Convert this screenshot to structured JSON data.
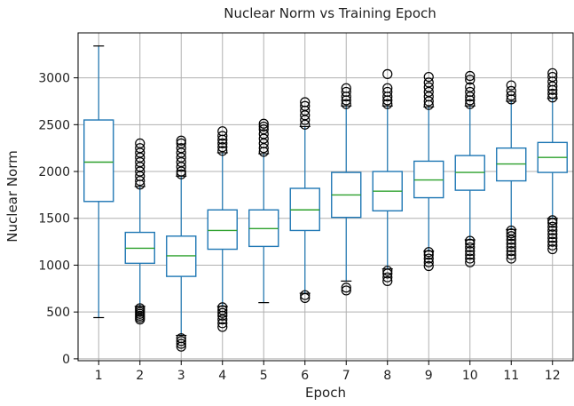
{
  "chart_data": {
    "type": "box",
    "title": "Nuclear Norm vs Training Epoch",
    "xlabel": "Epoch",
    "ylabel": "Nuclear Norm",
    "categories": [
      "1",
      "2",
      "3",
      "4",
      "5",
      "6",
      "7",
      "8",
      "9",
      "10",
      "11",
      "12"
    ],
    "ylim": [
      -20,
      3480
    ],
    "yticks": [
      0,
      500,
      1000,
      1500,
      2000,
      2500,
      3000
    ],
    "grid": true,
    "colors": {
      "box": "#1f77b4",
      "median": "#2ca02c",
      "grid": "#b0b0b0",
      "flier": "#000000"
    },
    "boxes": [
      {
        "epoch": "1",
        "whislo": 440,
        "q1": 1680,
        "med": 2100,
        "q3": 2550,
        "whishi": 3340,
        "fliers": []
      },
      {
        "epoch": "2",
        "whislo": 560,
        "q1": 1020,
        "med": 1180,
        "q3": 1350,
        "whishi": 1840,
        "fliers": [
          420,
          440,
          460,
          480,
          500,
          520,
          540,
          1860,
          1900,
          1950,
          2000,
          2050,
          2100,
          2150,
          2200,
          2250,
          2300
        ]
      },
      {
        "epoch": "3",
        "whislo": 250,
        "q1": 880,
        "med": 1100,
        "q3": 1310,
        "whishi": 1950,
        "fliers": [
          130,
          160,
          190,
          220,
          1970,
          2000,
          2050,
          2100,
          2150,
          2200,
          2250,
          2300,
          2330
        ]
      },
      {
        "epoch": "4",
        "whislo": 560,
        "q1": 1170,
        "med": 1370,
        "q3": 1590,
        "whishi": 2200,
        "fliers": [
          340,
          380,
          420,
          460,
          490,
          520,
          550,
          2220,
          2260,
          2300,
          2340,
          2380,
          2430
        ]
      },
      {
        "epoch": "5",
        "whislo": 600,
        "q1": 1200,
        "med": 1390,
        "q3": 1590,
        "whishi": 2190,
        "fliers": [
          2210,
          2250,
          2300,
          2350,
          2400,
          2450,
          2480,
          2510
        ]
      },
      {
        "epoch": "6",
        "whislo": 700,
        "q1": 1370,
        "med": 1590,
        "q3": 1820,
        "whishi": 2480,
        "fliers": [
          650,
          680,
          2500,
          2550,
          2600,
          2650,
          2700,
          2740
        ]
      },
      {
        "epoch": "7",
        "whislo": 830,
        "q1": 1510,
        "med": 1750,
        "q3": 1990,
        "whishi": 2700,
        "fliers": [
          730,
          760,
          2720,
          2760,
          2800,
          2850,
          2890
        ]
      },
      {
        "epoch": "8",
        "whislo": 960,
        "q1": 1580,
        "med": 1790,
        "q3": 2000,
        "whishi": 2700,
        "fliers": [
          830,
          870,
          910,
          940,
          2720,
          2760,
          2800,
          2850,
          2890,
          3040
        ]
      },
      {
        "epoch": "9",
        "whislo": 1150,
        "q1": 1720,
        "med": 1910,
        "q3": 2110,
        "whishi": 2690,
        "fliers": [
          990,
          1030,
          1070,
          1110,
          1140,
          2710,
          2750,
          2800,
          2850,
          2900,
          2950,
          3010
        ]
      },
      {
        "epoch": "10",
        "whislo": 1270,
        "q1": 1800,
        "med": 1990,
        "q3": 2170,
        "whishi": 2700,
        "fliers": [
          1030,
          1070,
          1110,
          1150,
          1190,
          1230,
          1260,
          2720,
          2760,
          2800,
          2850,
          2900,
          2980,
          3020
        ]
      },
      {
        "epoch": "11",
        "whislo": 1380,
        "q1": 1900,
        "med": 2080,
        "q3": 2250,
        "whishi": 2750,
        "fliers": [
          1070,
          1110,
          1150,
          1190,
          1230,
          1270,
          1310,
          1340,
          1370,
          2770,
          2810,
          2860,
          2920
        ]
      },
      {
        "epoch": "12",
        "whislo": 1500,
        "q1": 1990,
        "med": 2150,
        "q3": 2310,
        "whishi": 2780,
        "fliers": [
          1170,
          1210,
          1250,
          1290,
          1330,
          1370,
          1410,
          1450,
          1480,
          2790,
          2830,
          2870,
          2910,
          2960,
          3010,
          3050
        ]
      }
    ]
  }
}
